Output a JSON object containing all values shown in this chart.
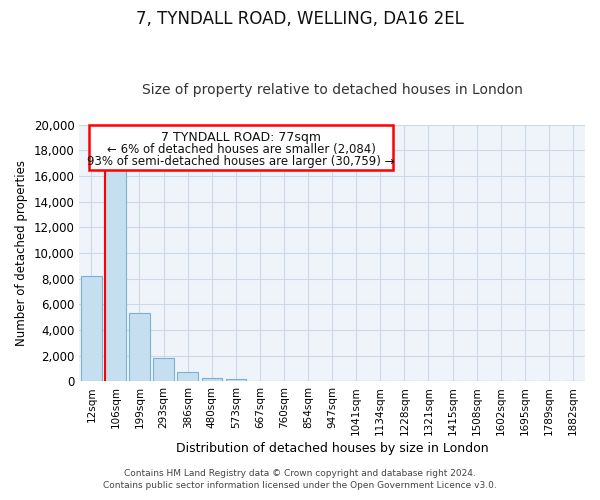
{
  "title": "7, TYNDALL ROAD, WELLING, DA16 2EL",
  "subtitle": "Size of property relative to detached houses in London",
  "xlabel": "Distribution of detached houses by size in London",
  "ylabel": "Number of detached properties",
  "bar_color": "#c6dff0",
  "bar_edge_color": "#7ab0d4",
  "categories": [
    "12sqm",
    "106sqm",
    "199sqm",
    "293sqm",
    "386sqm",
    "480sqm",
    "573sqm",
    "667sqm",
    "760sqm",
    "854sqm",
    "947sqm",
    "1041sqm",
    "1134sqm",
    "1228sqm",
    "1321sqm",
    "1415sqm",
    "1508sqm",
    "1602sqm",
    "1695sqm",
    "1789sqm",
    "1882sqm"
  ],
  "values": [
    8200,
    16500,
    5300,
    1850,
    700,
    300,
    200,
    0,
    0,
    0,
    0,
    0,
    0,
    0,
    0,
    0,
    0,
    0,
    0,
    0,
    0
  ],
  "ylim": [
    0,
    20000
  ],
  "yticks": [
    0,
    2000,
    4000,
    6000,
    8000,
    10000,
    12000,
    14000,
    16000,
    18000,
    20000
  ],
  "annotation_text_line1": "7 TYNDALL ROAD: 77sqm",
  "annotation_text_line2": "← 6% of detached houses are smaller (2,084)",
  "annotation_text_line3": "93% of semi-detached houses are larger (30,759) →",
  "footer_line1": "Contains HM Land Registry data © Crown copyright and database right 2024.",
  "footer_line2": "Contains public sector information licensed under the Open Government Licence v3.0.",
  "background_color": "#ffffff",
  "grid_color": "#ccd9e8",
  "title_fontsize": 12,
  "subtitle_fontsize": 10
}
